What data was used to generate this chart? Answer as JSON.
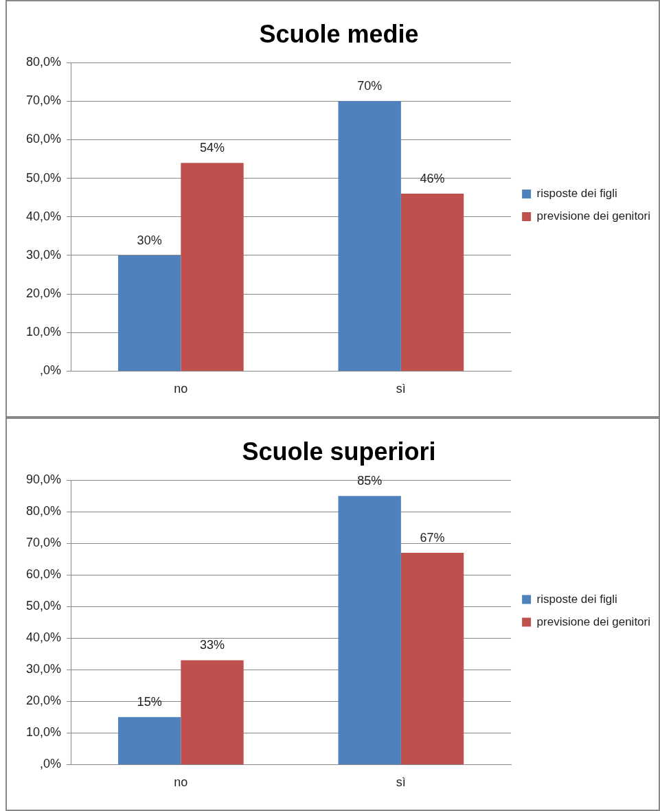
{
  "chart_data": [
    {
      "type": "bar",
      "title": "Scuole medie",
      "categories": [
        "no",
        "sì"
      ],
      "series": [
        {
          "name": "risposte dei figli",
          "color": "#4f81bd",
          "values": [
            30,
            70
          ],
          "value_labels": [
            "30%",
            "70%"
          ]
        },
        {
          "name": "previsione dei genitori",
          "color": "#c0504d",
          "values": [
            54,
            46
          ],
          "value_labels": [
            "54%",
            "46%"
          ]
        }
      ],
      "ylim": [
        0,
        80
      ],
      "yticks": [
        {
          "value": 0,
          "label": ",0%"
        },
        {
          "value": 10,
          "label": "10,0%"
        },
        {
          "value": 20,
          "label": "20,0%"
        },
        {
          "value": 30,
          "label": "30,0%"
        },
        {
          "value": 40,
          "label": "40,0%"
        },
        {
          "value": 50,
          "label": "50,0%"
        },
        {
          "value": 60,
          "label": "60,0%"
        },
        {
          "value": 70,
          "label": "70,0%"
        },
        {
          "value": 80,
          "label": "80,0%"
        }
      ],
      "grid": "y",
      "legend": "right"
    },
    {
      "type": "bar",
      "title": "Scuole superiori",
      "categories": [
        "no",
        "sì"
      ],
      "series": [
        {
          "name": "risposte dei figli",
          "color": "#4f81bd",
          "values": [
            15,
            85
          ],
          "value_labels": [
            "15%",
            "85%"
          ]
        },
        {
          "name": "previsione dei genitori",
          "color": "#c0504d",
          "values": [
            33,
            67
          ],
          "value_labels": [
            "33%",
            "67%"
          ]
        }
      ],
      "ylim": [
        0,
        90
      ],
      "yticks": [
        {
          "value": 0,
          "label": ",0%"
        },
        {
          "value": 10,
          "label": "10,0%"
        },
        {
          "value": 20,
          "label": "20,0%"
        },
        {
          "value": 30,
          "label": "30,0%"
        },
        {
          "value": 40,
          "label": "40,0%"
        },
        {
          "value": 50,
          "label": "50,0%"
        },
        {
          "value": 60,
          "label": "60,0%"
        },
        {
          "value": 70,
          "label": "70,0%"
        },
        {
          "value": 80,
          "label": "80,0%"
        },
        {
          "value": 90,
          "label": "90,0%"
        }
      ],
      "grid": "y",
      "legend": "right"
    }
  ]
}
